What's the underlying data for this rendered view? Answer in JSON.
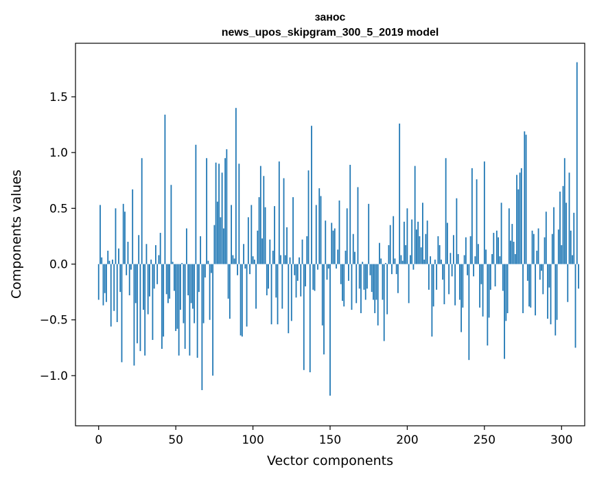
{
  "chart_data": {
    "type": "bar",
    "title": "занос",
    "subtitle": "news_upos_skipgram_300_5_2019 model",
    "xlabel": "Vector components",
    "ylabel": "Components values",
    "xlim": [
      -15,
      315
    ],
    "ylim": [
      -1.45,
      1.98
    ],
    "xticks": [
      0,
      50,
      100,
      150,
      200,
      250,
      300
    ],
    "yticks": [
      -1.0,
      -0.5,
      0.0,
      0.5,
      1.0,
      1.5
    ],
    "ytick_labels": [
      "−1.0",
      "−0.5",
      "0.0",
      "0.5",
      "1.0",
      "1.5"
    ],
    "grid": false,
    "legend": "none",
    "bar_color": "#1f77b4",
    "values": [
      -0.32,
      0.53,
      0.06,
      -0.37,
      -0.26,
      -0.34,
      0.12,
      0.03,
      -0.56,
      0.04,
      -0.42,
      0.5,
      -0.52,
      0.14,
      -0.25,
      -0.88,
      0.54,
      0.47,
      -0.1,
      0.2,
      -0.28,
      -0.05,
      0.67,
      -0.91,
      -0.35,
      -0.71,
      0.26,
      -0.78,
      0.95,
      -0.41,
      -0.82,
      0.18,
      -0.45,
      -0.29,
      0.04,
      -0.68,
      -0.22,
      0.17,
      -0.18,
      0.08,
      0.28,
      -0.76,
      -0.65,
      1.34,
      -0.27,
      -0.35,
      -0.31,
      0.71,
      0.02,
      -0.24,
      -0.6,
      -0.58,
      -0.82,
      -0.41,
      0.01,
      -0.53,
      -0.76,
      0.32,
      -0.28,
      -0.82,
      -0.35,
      -0.4,
      -0.53,
      1.07,
      -0.84,
      -0.25,
      0.25,
      -1.13,
      -0.53,
      -0.12,
      0.95,
      0.03,
      -0.5,
      -0.08,
      -1.0,
      0.35,
      0.91,
      0.56,
      0.9,
      0.42,
      0.82,
      0.32,
      0.95,
      1.03,
      -0.31,
      -0.49,
      0.53,
      0.08,
      0.05,
      1.4,
      -0.1,
      0.9,
      -0.64,
      -0.65,
      0.18,
      -0.04,
      -0.56,
      0.42,
      -0.09,
      0.53,
      0.07,
      0.04,
      -0.4,
      0.3,
      0.6,
      0.88,
      0.23,
      0.79,
      0.51,
      -0.28,
      -0.22,
      0.22,
      -0.54,
      0.12,
      0.52,
      -0.3,
      -0.54,
      0.92,
      0.08,
      -0.4,
      0.77,
      0.08,
      0.33,
      -0.62,
      0.06,
      -0.51,
      0.6,
      -0.1,
      -0.3,
      -0.15,
      0.06,
      -0.29,
      0.22,
      -0.95,
      -0.2,
      0.25,
      0.84,
      -0.97,
      1.24,
      -0.23,
      -0.24,
      0.53,
      -0.05,
      0.68,
      0.61,
      -0.55,
      -0.81,
      0.39,
      -0.14,
      -0.04,
      -1.18,
      0.37,
      0.3,
      0.32,
      -0.04,
      0.13,
      0.57,
      -0.18,
      -0.33,
      -0.38,
      0.12,
      0.5,
      -0.15,
      0.89,
      -0.41,
      0.27,
      0.11,
      -0.35,
      0.69,
      -0.22,
      -0.44,
      0.02,
      -0.23,
      -0.32,
      -0.22,
      0.54,
      -0.1,
      -0.25,
      -0.32,
      -0.44,
      -0.32,
      -0.55,
      0.19,
      0.05,
      -0.32,
      -0.69,
      0.01,
      -0.45,
      0.17,
      0.35,
      -0.09,
      0.43,
      0.05,
      -0.09,
      -0.26,
      1.26,
      0.08,
      0.03,
      0.38,
      0.17,
      0.5,
      -0.35,
      0.08,
      0.4,
      -0.05,
      0.88,
      0.31,
      0.38,
      0.25,
      0.15,
      0.55,
      0.04,
      0.27,
      0.39,
      -0.23,
      0.07,
      -0.65,
      -0.38,
      0.04,
      -0.23,
      0.25,
      0.17,
      0.04,
      -0.14,
      -0.36,
      0.95,
      0.37,
      -0.27,
      0.1,
      -0.11,
      0.26,
      -0.37,
      0.59,
      0.09,
      -0.32,
      -0.61,
      -0.39,
      0.08,
      0.24,
      -0.1,
      -0.86,
      0.25,
      0.86,
      -0.11,
      0.07,
      0.76,
      0.18,
      -0.39,
      -0.18,
      -0.47,
      0.92,
      0.13,
      -0.73,
      -0.48,
      -0.23,
      0.09,
      0.28,
      -0.2,
      0.3,
      0.24,
      0.07,
      0.55,
      -0.24,
      -0.85,
      -0.51,
      -0.44,
      0.5,
      0.21,
      0.36,
      0.2,
      0.09,
      0.8,
      0.67,
      0.82,
      0.86,
      -0.44,
      1.19,
      1.16,
      -0.15,
      -0.38,
      -0.39,
      0.3,
      0.27,
      -0.46,
      0.12,
      0.32,
      -0.14,
      -0.06,
      -0.27,
      0.24,
      0.47,
      -0.49,
      -0.21,
      -0.54,
      0.27,
      0.51,
      -0.64,
      -0.5,
      0.31,
      0.65,
      0.17,
      0.7,
      0.95,
      0.55,
      -0.34,
      0.82,
      0.3,
      0.08,
      0.46,
      -0.75,
      1.81,
      -0.22
    ]
  }
}
